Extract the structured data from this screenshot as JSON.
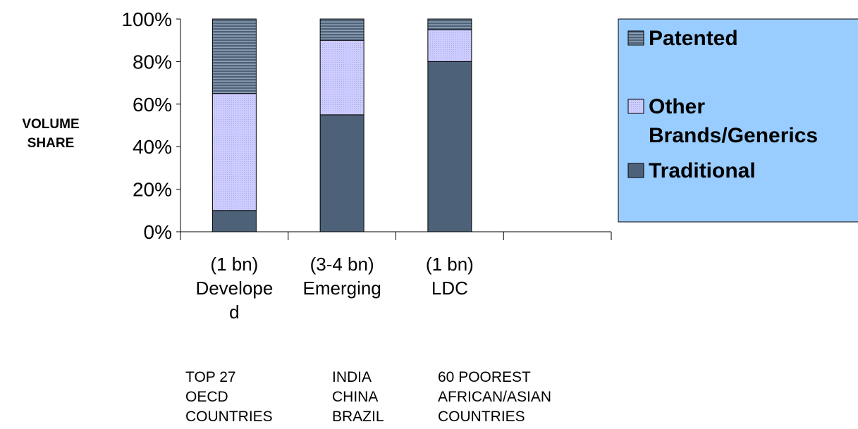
{
  "chart_data": {
    "type": "bar",
    "stacked": true,
    "ylabel": "VOLUME\nSHARE",
    "ylim": [
      0,
      100
    ],
    "yticks": [
      "0%",
      "20%",
      "40%",
      "60%",
      "80%",
      "100%"
    ],
    "categories": [
      "(1 bn)\nDevelope\nd",
      "(3-4 bn)\nEmerging",
      "(1 bn)\nLDC",
      ""
    ],
    "series": [
      {
        "name": "Traditional",
        "color": "#4d6278",
        "pattern": "solid",
        "values": [
          10,
          55,
          80,
          null
        ]
      },
      {
        "name": "Other Brands/Generics",
        "color": "#ccccff",
        "pattern": "dotted",
        "values": [
          55,
          35,
          15,
          null
        ]
      },
      {
        "name": "Patented",
        "color": "#4d6278",
        "pattern": "horizontal-stripes",
        "values": [
          35,
          10,
          5,
          null
        ]
      }
    ],
    "legend": {
      "position": "right",
      "background": "#99ccff",
      "items": [
        "Patented",
        "Other\nBrands/Generics",
        "Traditional"
      ]
    },
    "grid": false
  },
  "notes": [
    "TOP 27\nOECD\nCOUNTRIES",
    "INDIA\nCHINA\nBRAZIL",
    "60 POOREST\nAFRICAN/ASIAN\nCOUNTRIES"
  ]
}
